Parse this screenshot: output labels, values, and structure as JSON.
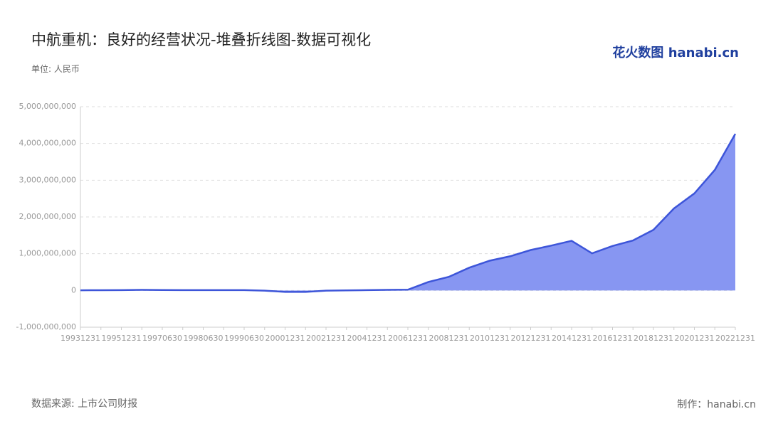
{
  "chart_data": {
    "type": "area",
    "title": "中航重机：良好的经营状况-堆叠折线图-数据可视化",
    "unit": "单位: 人民币",
    "source": "数据来源: 上市公司财报",
    "credit": "制作：hanabi.cn",
    "logo": "花火数图 hanabi.cn",
    "categories": [
      "19931231",
      null,
      "19951231",
      null,
      "19970630",
      null,
      "19980630",
      null,
      "19990630",
      null,
      "20001231",
      null,
      "20021231",
      null,
      "20041231",
      null,
      "20061231",
      null,
      "20081231",
      null,
      "20101231",
      null,
      "20121231",
      null,
      "20141231",
      null,
      "20161231",
      null,
      "20181231",
      null,
      "20201231",
      null,
      "20221231"
    ],
    "values": [
      5000000,
      6000000,
      8000000,
      15000000,
      12000000,
      8000000,
      10000000,
      10000000,
      9000000,
      -5000000,
      -40000000,
      -40000000,
      -5000000,
      2000000,
      8000000,
      15000000,
      20000000,
      230000000,
      370000000,
      620000000,
      810000000,
      930000000,
      1100000000,
      1220000000,
      1350000000,
      1010000000,
      1210000000,
      1360000000,
      1650000000,
      2230000000,
      2640000000,
      3280000000,
      4260000000
    ],
    "color": "#3d55d9",
    "fill": "#8796f2",
    "ylim": [
      -1000000000,
      5000000000
    ],
    "yticks": [
      {
        "value": -1000000000,
        "label": "-1,000,000,000"
      },
      0,
      {
        "value": 1000000000,
        "label": "1,000,000,000"
      },
      {
        "value": 2000000000,
        "label": "2,000,000,000"
      },
      {
        "value": 3000000000,
        "label": "3,000,000,000"
      },
      {
        "value": 4000000000,
        "label": "4,000,000,000"
      },
      {
        "value": 5000000000,
        "label": "5,000,000,000"
      }
    ],
    "grid": true
  }
}
